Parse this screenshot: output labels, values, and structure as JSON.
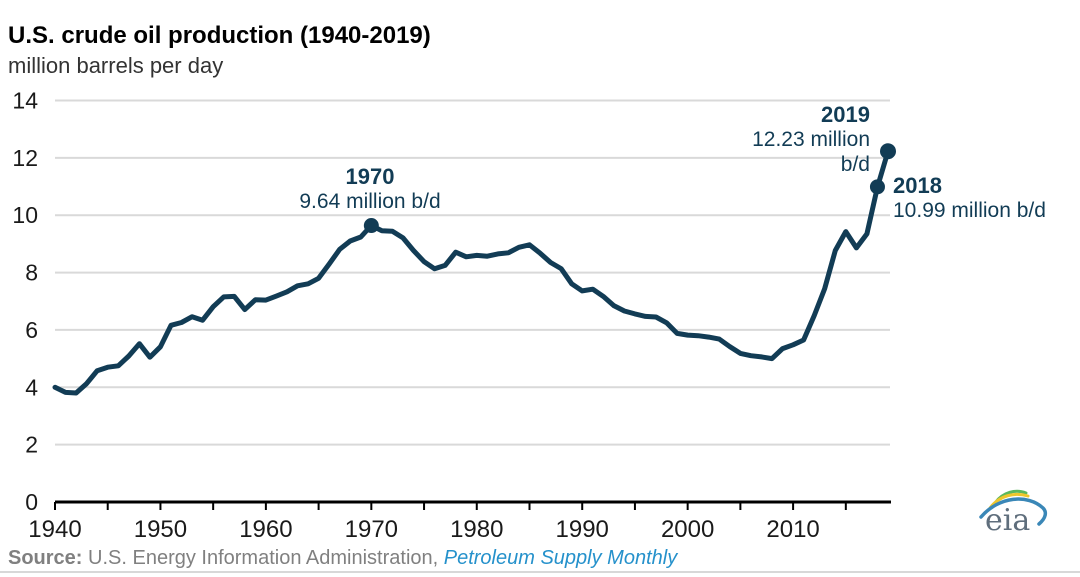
{
  "header": {
    "title": "U.S. crude oil production (1940-2019)",
    "subtitle": "million barrels per day"
  },
  "chart_data": {
    "type": "line",
    "title": "U.S. crude oil production (1940-2019)",
    "ylabel": "million barrels per day",
    "x": [
      1940,
      1941,
      1942,
      1943,
      1944,
      1945,
      1946,
      1947,
      1948,
      1949,
      1950,
      1951,
      1952,
      1953,
      1954,
      1955,
      1956,
      1957,
      1958,
      1959,
      1960,
      1961,
      1962,
      1963,
      1964,
      1965,
      1966,
      1967,
      1968,
      1969,
      1970,
      1971,
      1972,
      1973,
      1974,
      1975,
      1976,
      1977,
      1978,
      1979,
      1980,
      1981,
      1982,
      1983,
      1984,
      1985,
      1986,
      1987,
      1988,
      1989,
      1990,
      1991,
      1992,
      1993,
      1994,
      1995,
      1996,
      1997,
      1998,
      1999,
      2000,
      2001,
      2002,
      2003,
      2004,
      2005,
      2006,
      2007,
      2008,
      2009,
      2010,
      2011,
      2012,
      2013,
      2014,
      2015,
      2016,
      2017,
      2018,
      2019
    ],
    "values": [
      4.0,
      3.82,
      3.8,
      4.13,
      4.58,
      4.7,
      4.75,
      5.09,
      5.52,
      5.05,
      5.41,
      6.16,
      6.26,
      6.46,
      6.34,
      6.81,
      7.15,
      7.17,
      6.71,
      7.05,
      7.04,
      7.18,
      7.33,
      7.54,
      7.61,
      7.8,
      8.3,
      8.81,
      9.1,
      9.24,
      9.64,
      9.46,
      9.44,
      9.21,
      8.77,
      8.38,
      8.13,
      8.25,
      8.71,
      8.55,
      8.6,
      8.57,
      8.65,
      8.69,
      8.88,
      8.97,
      8.68,
      8.35,
      8.14,
      7.61,
      7.36,
      7.42,
      7.17,
      6.85,
      6.66,
      6.56,
      6.47,
      6.45,
      6.25,
      5.88,
      5.82,
      5.8,
      5.75,
      5.68,
      5.42,
      5.18,
      5.1,
      5.06,
      5.0,
      5.35,
      5.48,
      5.65,
      6.5,
      7.44,
      8.77,
      9.43,
      8.86,
      9.35,
      10.99,
      12.23
    ],
    "xlim": [
      1940,
      2019
    ],
    "ylim": [
      0,
      14
    ],
    "yticks": [
      0,
      2,
      4,
      6,
      8,
      10,
      12,
      14
    ],
    "xtick_labels": [
      "1940",
      "1950",
      "1960",
      "1970",
      "1980",
      "1990",
      "2000",
      "2010"
    ],
    "minor_tick_step_years": 5,
    "grid": "horizontal",
    "legend": "none",
    "marker_years": [
      1970,
      2018,
      2019
    ],
    "annotations": {
      "a1970": {
        "year": "1970",
        "value": "9.64 million b/d"
      },
      "a2019": {
        "year": "2019",
        "value_line1": "12.23 million",
        "value_line2": "b/d"
      },
      "a2018": {
        "year": "2018",
        "value": "10.99 million b/d"
      }
    }
  },
  "source": {
    "label": "Source:",
    "agency": "U.S. Energy Information Administration,",
    "publication": "Petroleum Supply Monthly"
  },
  "logo": {
    "text": "eia"
  },
  "colors": {
    "line": "#123c55",
    "grid": "#d9d9d9",
    "axis": "#000000",
    "tick_text": "#1a1a1a",
    "source_gray": "#808080",
    "link_blue": "#2591cb",
    "logo_gray": "#5f6e7c",
    "logo_green": "#5cb85c",
    "logo_yellow": "#eec62c",
    "logo_blue": "#3a87b7"
  }
}
